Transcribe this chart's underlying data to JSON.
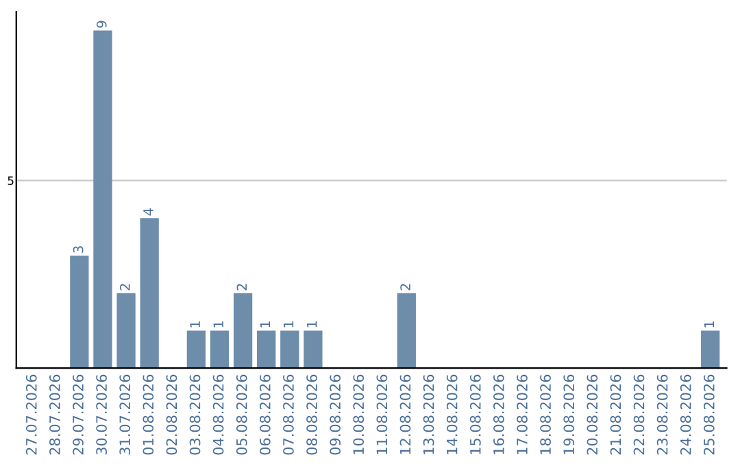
{
  "chart_data": {
    "type": "bar",
    "categories": [
      "27.07.2026",
      "28.07.2026",
      "29.07.2026",
      "30.07.2026",
      "31.07.2026",
      "01.08.2026",
      "02.08.2026",
      "03.08.2026",
      "04.08.2026",
      "05.08.2026",
      "06.08.2026",
      "07.08.2026",
      "08.08.2026",
      "09.08.2026",
      "10.08.2026",
      "11.08.2026",
      "12.08.2026",
      "13.08.2026",
      "14.08.2026",
      "15.08.2026",
      "16.08.2026",
      "17.08.2026",
      "18.08.2026",
      "19.08.2026",
      "20.08.2026",
      "21.08.2026",
      "22.08.2026",
      "23.08.2026",
      "24.08.2026",
      "25.08.2026"
    ],
    "values": [
      0,
      0,
      3,
      9,
      2,
      4,
      0,
      1,
      1,
      2,
      1,
      1,
      1,
      0,
      0,
      0,
      2,
      0,
      0,
      0,
      0,
      0,
      0,
      0,
      0,
      0,
      0,
      0,
      0,
      1
    ],
    "value_labels": [
      null,
      null,
      "3",
      "9",
      "2",
      "4",
      null,
      "1",
      "1",
      "2",
      "1",
      "1",
      "1",
      null,
      null,
      null,
      "2",
      null,
      null,
      null,
      null,
      null,
      null,
      null,
      null,
      null,
      null,
      null,
      null,
      "1"
    ],
    "color": "#6d8dab",
    "ylim": [
      0,
      9.5
    ],
    "yticks": [
      5
    ],
    "grid": "y"
  }
}
